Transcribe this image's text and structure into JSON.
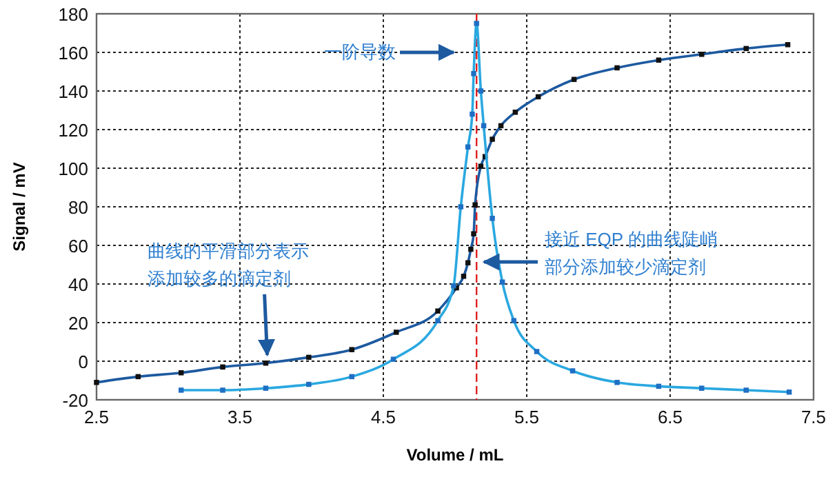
{
  "chart_data": {
    "type": "line",
    "xlabel": "Volume / mL",
    "ylabel": "Signal / mV",
    "xlim": [
      2.5,
      7.5
    ],
    "xticks": [
      2.5,
      3.5,
      4.5,
      5.5,
      6.5,
      7.5
    ],
    "ylim": [
      -20,
      180
    ],
    "yticks": [
      -20,
      0,
      20,
      40,
      60,
      80,
      100,
      120,
      140,
      160,
      180
    ],
    "grid": true,
    "marker": "square",
    "line_style": "solid",
    "series": [
      {
        "color": "#1d5aa0",
        "x": [
          2.5,
          2.79,
          3.09,
          3.38,
          3.68,
          3.98,
          4.28,
          4.59,
          4.88,
          5.01,
          5.06,
          5.09,
          5.11,
          5.13,
          5.14,
          5.18,
          5.21,
          5.26,
          5.32,
          5.42,
          5.58,
          5.83,
          6.13,
          6.42,
          6.72,
          7.03,
          7.32
        ],
        "values": [
          -11,
          -8,
          -6,
          -3,
          -1,
          2,
          6,
          15,
          26,
          38,
          44,
          51,
          58,
          66,
          81,
          101,
          106,
          115,
          122,
          129,
          137,
          146,
          152,
          156,
          159,
          162,
          164
        ]
      },
      {
        "color": "#2aa8e0",
        "x": [
          3.09,
          3.38,
          3.68,
          3.98,
          4.28,
          4.57,
          4.88,
          4.99,
          5.04,
          5.09,
          5.12,
          5.13,
          5.15,
          5.18,
          5.2,
          5.26,
          5.33,
          5.41,
          5.57,
          5.82,
          6.13,
          6.42,
          6.72,
          7.03,
          7.33
        ],
        "values": [
          -15,
          -15,
          -14,
          -12,
          -8,
          1,
          21,
          39,
          80,
          111,
          128,
          149,
          175,
          140,
          122,
          74,
          41,
          21,
          5,
          -5,
          -11,
          -13,
          -14,
          -15,
          -16
        ]
      }
    ],
    "ref_lines": [
      {
        "axis": "x",
        "value": 5.15,
        "color": "#e02020",
        "line_style": "dashed"
      }
    ],
    "annotations": [
      "一阶导数",
      {
        "text": "曲线的平滑部分表示添加较多的滴定剂",
        "x": 3.7,
        "y": -1
      },
      "接近 EQP 的曲线陡峭部分添加较少滴定剂"
    ]
  }
}
